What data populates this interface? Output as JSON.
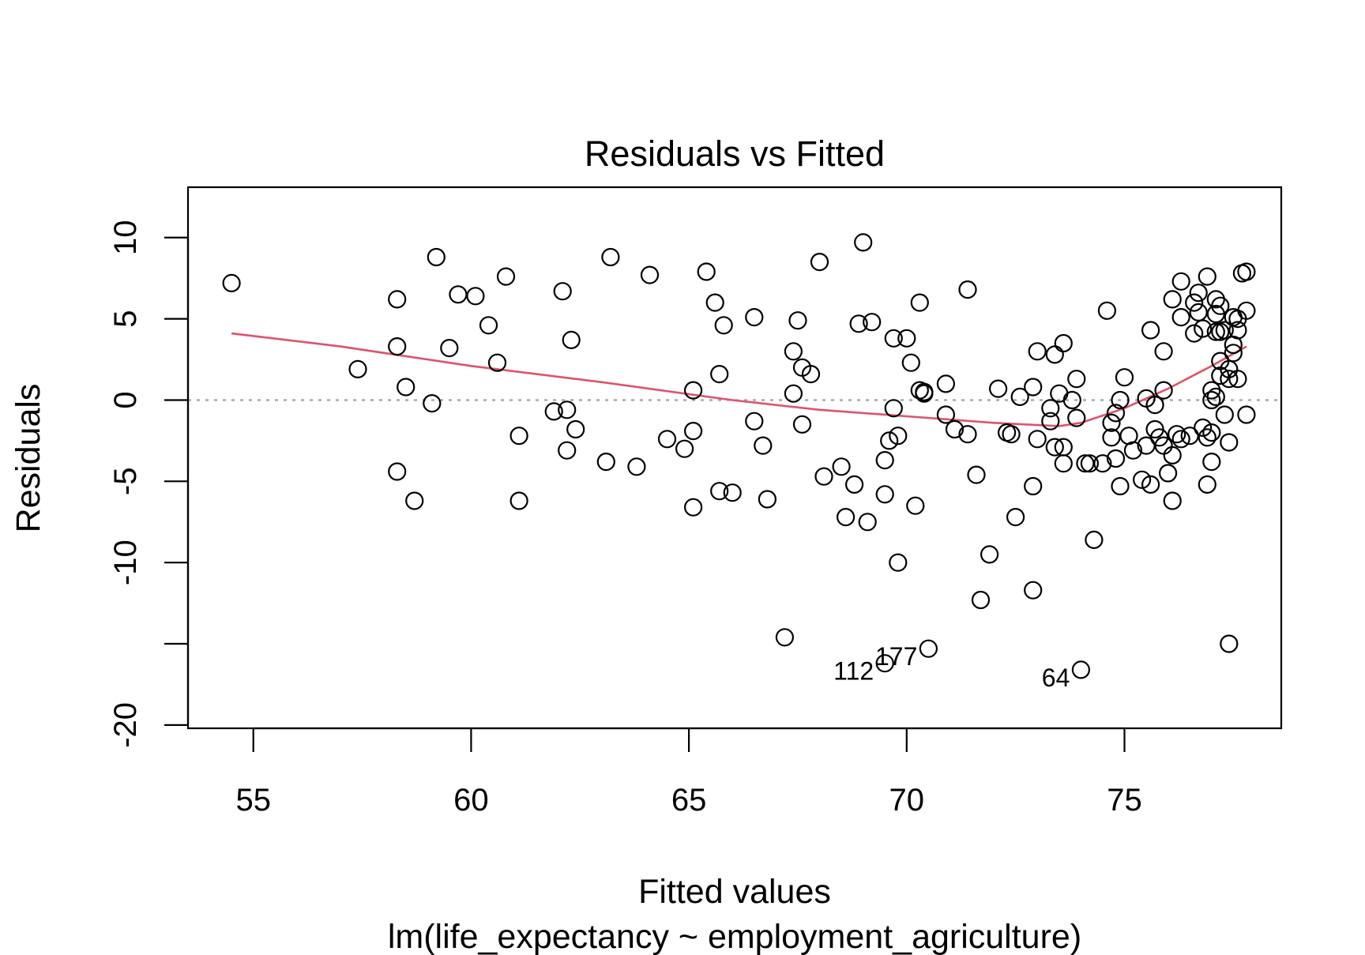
{
  "chart_data": {
    "type": "scatter",
    "title": "Residuals vs Fitted",
    "xlabel": "Fitted values",
    "subtitle": "lm(life_expectancy ~ employment_agriculture)",
    "ylabel": "Residuals",
    "xlim": [
      53.5,
      78.6
    ],
    "ylim": [
      -20.2,
      13.1
    ],
    "xticks": [
      55,
      60,
      65,
      70,
      75
    ],
    "yticks": [
      -20,
      -15,
      -10,
      -5,
      0,
      5,
      10
    ],
    "ytick_labels": [
      "-20",
      "",
      "-10",
      "-5",
      "0",
      "5",
      "10"
    ],
    "reference_line": {
      "y": 0,
      "style": "dotted",
      "color": "#a0a0a0"
    },
    "smooth_color": "#df536b",
    "points": [
      [
        54.5,
        7.2
      ],
      [
        57.4,
        1.9
      ],
      [
        58.3,
        6.2
      ],
      [
        58.3,
        3.3
      ],
      [
        58.3,
        -4.4
      ],
      [
        58.5,
        0.8
      ],
      [
        58.7,
        -6.2
      ],
      [
        59.1,
        -0.2
      ],
      [
        59.2,
        8.8
      ],
      [
        59.5,
        3.2
      ],
      [
        59.7,
        6.5
      ],
      [
        60.1,
        6.4
      ],
      [
        60.4,
        4.6
      ],
      [
        60.6,
        2.3
      ],
      [
        60.8,
        7.6
      ],
      [
        61.1,
        -2.2
      ],
      [
        61.1,
        -6.2
      ],
      [
        61.9,
        -0.7
      ],
      [
        62.1,
        6.7
      ],
      [
        62.2,
        -0.6
      ],
      [
        62.2,
        -3.1
      ],
      [
        62.3,
        3.7
      ],
      [
        62.4,
        -1.8
      ],
      [
        63.1,
        -3.8
      ],
      [
        63.2,
        8.8
      ],
      [
        63.8,
        -4.1
      ],
      [
        64.1,
        7.7
      ],
      [
        64.5,
        -2.4
      ],
      [
        64.9,
        -3.0
      ],
      [
        65.1,
        0.6
      ],
      [
        65.1,
        -1.9
      ],
      [
        65.1,
        -6.6
      ],
      [
        65.4,
        7.9
      ],
      [
        65.6,
        6.0
      ],
      [
        65.7,
        1.6
      ],
      [
        65.7,
        -5.6
      ],
      [
        65.8,
        4.6
      ],
      [
        66.0,
        -5.7
      ],
      [
        66.5,
        5.1
      ],
      [
        66.5,
        -1.3
      ],
      [
        66.7,
        -2.8
      ],
      [
        66.8,
        -6.1
      ],
      [
        67.2,
        -14.6
      ],
      [
        67.4,
        3.0
      ],
      [
        67.4,
        0.4
      ],
      [
        67.5,
        4.9
      ],
      [
        67.6,
        2.0
      ],
      [
        67.6,
        -1.5
      ],
      [
        67.8,
        1.6
      ],
      [
        68.0,
        8.5
      ],
      [
        68.1,
        -4.7
      ],
      [
        68.5,
        -4.1
      ],
      [
        68.6,
        -7.2
      ],
      [
        68.8,
        -5.2
      ],
      [
        68.9,
        4.7
      ],
      [
        69.0,
        9.7
      ],
      [
        69.1,
        -7.5
      ],
      [
        69.2,
        4.8
      ],
      [
        69.5,
        -3.7
      ],
      [
        69.5,
        -5.8
      ],
      [
        69.5,
        -16.2
      ],
      [
        69.6,
        -2.5
      ],
      [
        69.7,
        -0.5
      ],
      [
        69.7,
        3.8
      ],
      [
        69.8,
        -2.2
      ],
      [
        69.8,
        -10.0
      ],
      [
        70.0,
        3.8
      ],
      [
        70.1,
        2.3
      ],
      [
        70.2,
        -6.5
      ],
      [
        70.3,
        0.6
      ],
      [
        70.3,
        6.0
      ],
      [
        70.4,
        0.4
      ],
      [
        70.4,
        0.5
      ],
      [
        70.5,
        -15.3
      ],
      [
        70.9,
        1.0
      ],
      [
        70.9,
        -0.9
      ],
      [
        71.1,
        -1.8
      ],
      [
        71.4,
        6.8
      ],
      [
        71.4,
        -2.1
      ],
      [
        71.6,
        -4.6
      ],
      [
        71.7,
        -12.3
      ],
      [
        71.9,
        -9.5
      ],
      [
        72.1,
        0.7
      ],
      [
        72.3,
        -2.0
      ],
      [
        72.4,
        -2.1
      ],
      [
        72.5,
        -7.2
      ],
      [
        72.6,
        0.2
      ],
      [
        72.9,
        0.8
      ],
      [
        72.9,
        -5.3
      ],
      [
        72.9,
        -11.7
      ],
      [
        73.0,
        3.0
      ],
      [
        73.0,
        -2.4
      ],
      [
        73.3,
        -0.5
      ],
      [
        73.3,
        -1.3
      ],
      [
        73.4,
        2.8
      ],
      [
        73.4,
        -2.9
      ],
      [
        73.5,
        0.4
      ],
      [
        73.6,
        3.5
      ],
      [
        73.6,
        -2.9
      ],
      [
        73.6,
        -3.9
      ],
      [
        73.8,
        0.0
      ],
      [
        73.9,
        -1.1
      ],
      [
        73.9,
        1.3
      ],
      [
        74.0,
        -16.6
      ],
      [
        74.1,
        -3.9
      ],
      [
        74.2,
        -3.9
      ],
      [
        74.3,
        -8.6
      ],
      [
        74.5,
        -3.9
      ],
      [
        74.6,
        5.5
      ],
      [
        74.7,
        -1.4
      ],
      [
        74.7,
        -2.3
      ],
      [
        74.8,
        -3.6
      ],
      [
        74.8,
        -0.8
      ],
      [
        74.9,
        0.0
      ],
      [
        74.9,
        -5.3
      ],
      [
        75.0,
        1.4
      ],
      [
        75.1,
        -2.2
      ],
      [
        75.2,
        -3.1
      ],
      [
        75.4,
        -4.9
      ],
      [
        75.5,
        0.1
      ],
      [
        75.5,
        -2.8
      ],
      [
        75.6,
        4.3
      ],
      [
        75.6,
        -5.2
      ],
      [
        75.7,
        -1.8
      ],
      [
        75.7,
        -0.3
      ],
      [
        75.8,
        -2.3
      ],
      [
        75.9,
        0.6
      ],
      [
        75.9,
        -2.8
      ],
      [
        75.9,
        3.0
      ],
      [
        76.0,
        -4.5
      ],
      [
        76.1,
        -3.4
      ],
      [
        76.1,
        6.2
      ],
      [
        76.1,
        -6.2
      ],
      [
        76.2,
        -2.1
      ],
      [
        76.3,
        7.3
      ],
      [
        76.3,
        -2.4
      ],
      [
        76.3,
        5.1
      ],
      [
        76.5,
        -2.2
      ],
      [
        76.6,
        6.0
      ],
      [
        76.6,
        4.1
      ],
      [
        76.7,
        6.6
      ],
      [
        76.7,
        5.4
      ],
      [
        76.8,
        -1.7
      ],
      [
        76.8,
        4.4
      ],
      [
        76.9,
        -2.3
      ],
      [
        76.9,
        7.6
      ],
      [
        76.9,
        -5.2
      ],
      [
        77.0,
        -3.8
      ],
      [
        77.0,
        -2.0
      ],
      [
        77.0,
        0.6
      ],
      [
        77.0,
        0.0
      ],
      [
        77.1,
        6.2
      ],
      [
        77.1,
        5.3
      ],
      [
        77.1,
        4.2
      ],
      [
        77.1,
        0.2
      ],
      [
        77.2,
        5.8
      ],
      [
        77.2,
        4.2
      ],
      [
        77.2,
        2.4
      ],
      [
        77.2,
        1.5
      ],
      [
        77.3,
        -0.9
      ],
      [
        77.3,
        4.3
      ],
      [
        77.4,
        1.9
      ],
      [
        77.4,
        1.3
      ],
      [
        77.4,
        -2.6
      ],
      [
        77.4,
        -15.0
      ],
      [
        77.5,
        5.1
      ],
      [
        77.5,
        3.4
      ],
      [
        77.5,
        2.9
      ],
      [
        77.6,
        1.3
      ],
      [
        77.6,
        4.3
      ],
      [
        77.6,
        5.0
      ],
      [
        77.7,
        7.8
      ],
      [
        77.8,
        7.9
      ],
      [
        77.8,
        5.5
      ],
      [
        77.8,
        -0.9
      ]
    ],
    "labeled_points": [
      {
        "x": 69.5,
        "y": -16.2,
        "label": "112"
      },
      {
        "x": 70.5,
        "y": -15.3,
        "label": "177"
      },
      {
        "x": 74.0,
        "y": -16.6,
        "label": "64"
      }
    ],
    "smooth_line": [
      [
        54.5,
        4.1
      ],
      [
        57.0,
        3.3
      ],
      [
        60.0,
        2.1
      ],
      [
        63.0,
        1.1
      ],
      [
        66.0,
        0.0
      ],
      [
        68.0,
        -0.6
      ],
      [
        70.0,
        -1.0
      ],
      [
        72.0,
        -1.4
      ],
      [
        73.5,
        -1.6
      ],
      [
        74.0,
        -1.4
      ],
      [
        75.0,
        -0.5
      ],
      [
        76.0,
        0.7
      ],
      [
        77.0,
        2.1
      ],
      [
        77.8,
        3.3
      ]
    ]
  }
}
